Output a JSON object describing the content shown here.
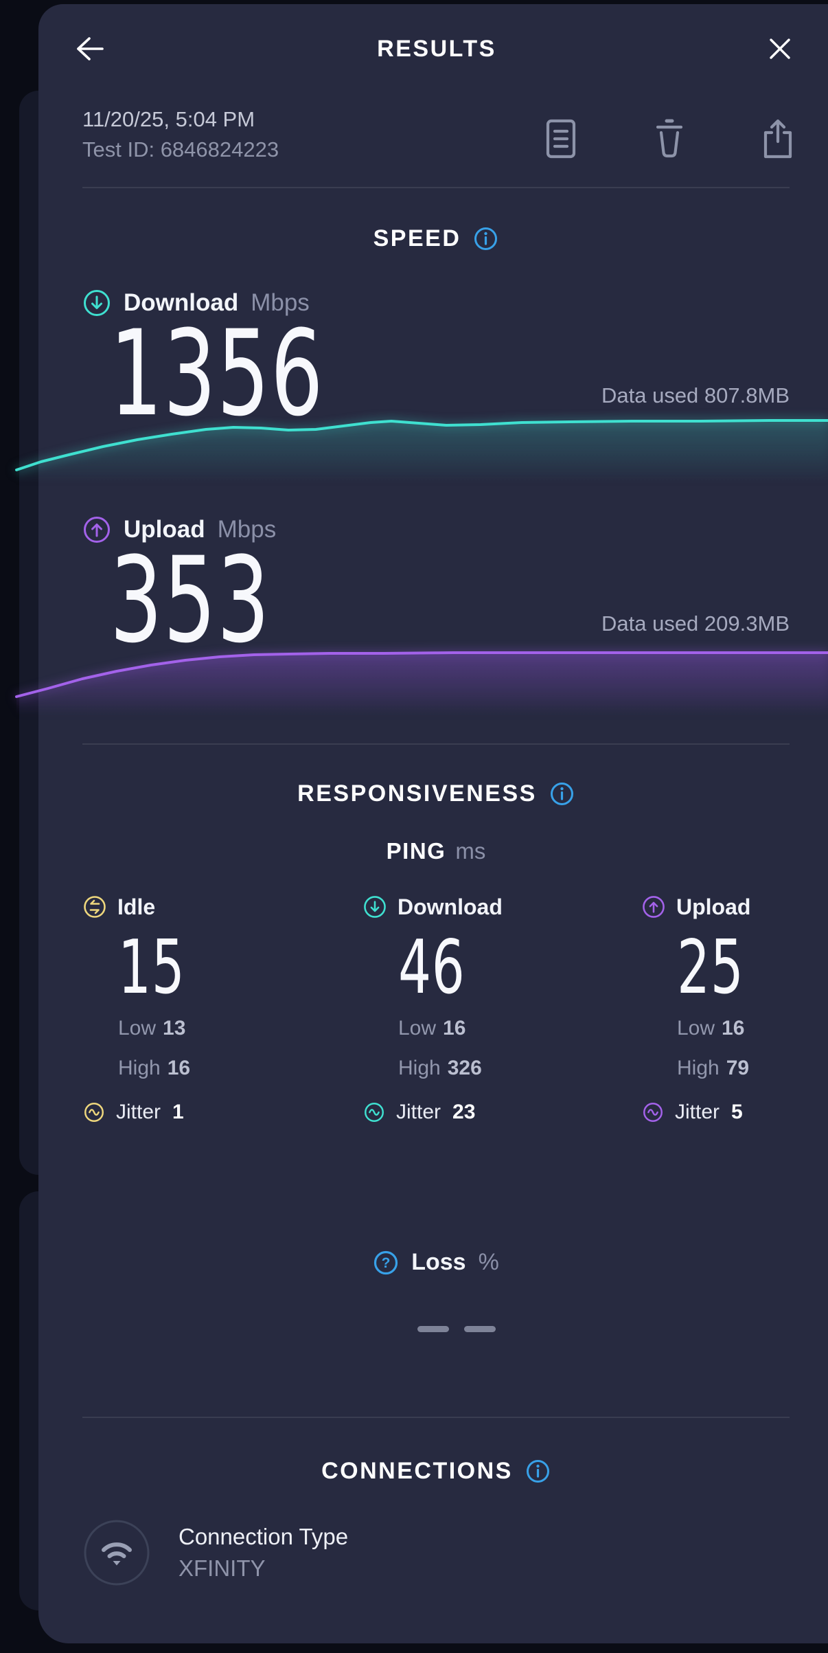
{
  "header": {
    "title": "RESULTS"
  },
  "meta": {
    "datetime": "11/20/25, 5:04 PM",
    "test_id": "Test ID: 6846824223"
  },
  "speed": {
    "title": "SPEED",
    "download": {
      "label": "Download",
      "unit": "Mbps",
      "value": "1356",
      "data_used": "Data used 807.8MB"
    },
    "upload": {
      "label": "Upload",
      "unit": "Mbps",
      "value": "353",
      "data_used": "Data used 209.3MB"
    }
  },
  "responsiveness": {
    "title": "RESPONSIVENESS",
    "ping": {
      "label": "PING",
      "unit": "ms"
    },
    "low_label": "Low",
    "high_label": "High",
    "jitter_label": "Jitter",
    "columns": [
      {
        "name": "Idle",
        "value": "15",
        "low": "13",
        "high": "16",
        "jitter": "1",
        "color": "#eed77d"
      },
      {
        "name": "Download",
        "value": "46",
        "low": "16",
        "high": "326",
        "jitter": "23",
        "color": "#3fe0d0"
      },
      {
        "name": "Upload",
        "value": "25",
        "low": "16",
        "high": "79",
        "jitter": "5",
        "color": "#a362ea"
      }
    ],
    "loss": {
      "label": "Loss",
      "unit": "%",
      "value": "– –"
    }
  },
  "connections": {
    "title": "CONNECTIONS",
    "type_label": "Connection Type",
    "type_value": "XFINITY"
  },
  "icons": {
    "back": "arrow-left",
    "close": "x",
    "notes": "document-lines",
    "delete": "trash-can",
    "share": "box-arrow-up",
    "info": "circled-i",
    "help": "circled-question-mark",
    "download": "circled-arrow-down",
    "upload": "circled-arrow-up",
    "idle": "circled-cycle-arrows",
    "jitter": "circled-sine-wave",
    "wifi": "wifi-arcs-in-circle"
  },
  "colors": {
    "card_bg": "#272a40",
    "page_bg": "#0a0c15",
    "accent_teal": "#3fe0d0",
    "accent_purple": "#a362ea",
    "accent_yellow": "#eed77d",
    "accent_blue": "#38a1e8"
  },
  "chart_data": [
    {
      "type": "line",
      "name": "download-speed-sparkline",
      "color": "#3fe0d0",
      "final_value_mbps": 1356,
      "legend": "none",
      "axes": "none",
      "points": [
        [
          24,
          92
        ],
        [
          60,
          80
        ],
        [
          100,
          70
        ],
        [
          150,
          58
        ],
        [
          200,
          48
        ],
        [
          250,
          40
        ],
        [
          300,
          33
        ],
        [
          340,
          30
        ],
        [
          380,
          31
        ],
        [
          420,
          34
        ],
        [
          460,
          33
        ],
        [
          500,
          28
        ],
        [
          540,
          23
        ],
        [
          570,
          21
        ],
        [
          610,
          24
        ],
        [
          650,
          27
        ],
        [
          700,
          26
        ],
        [
          760,
          23
        ],
        [
          830,
          22
        ],
        [
          920,
          21
        ],
        [
          1020,
          21
        ],
        [
          1120,
          20
        ],
        [
          1206,
          20
        ]
      ]
    },
    {
      "type": "line",
      "name": "upload-speed-sparkline",
      "color": "#a362ea",
      "final_value_mbps": 353,
      "legend": "none",
      "axes": "none",
      "points": [
        [
          24,
          84
        ],
        [
          70,
          72
        ],
        [
          120,
          58
        ],
        [
          170,
          47
        ],
        [
          220,
          38
        ],
        [
          270,
          31
        ],
        [
          320,
          26
        ],
        [
          370,
          23
        ],
        [
          420,
          22
        ],
        [
          480,
          21
        ],
        [
          560,
          21
        ],
        [
          660,
          20
        ],
        [
          780,
          20
        ],
        [
          920,
          20
        ],
        [
          1060,
          20
        ],
        [
          1206,
          20
        ]
      ]
    }
  ]
}
